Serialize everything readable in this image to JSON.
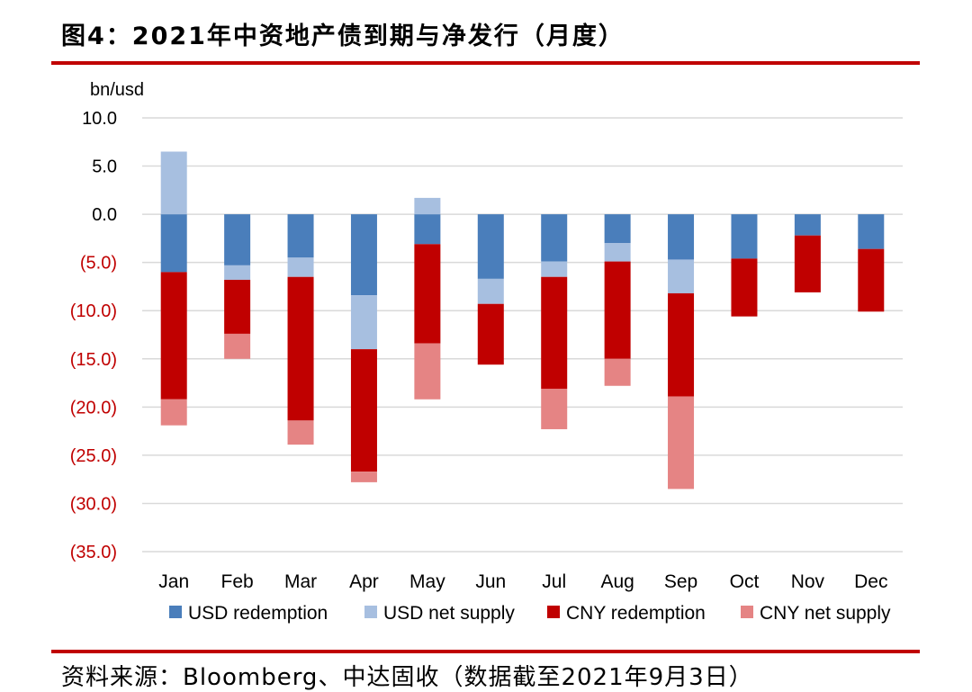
{
  "header": {
    "title": "图4：2021年中资地产债到期与净发行（月度）"
  },
  "footer": {
    "source": "资料来源：Bloomberg、中达固收（数据截至2021年9月3日）"
  },
  "colors": {
    "accent_rule": "#c00000",
    "usd_redemption": "#4a7ebb",
    "usd_net_supply": "#a7bfe0",
    "cny_redemption": "#c00000",
    "cny_net_supply": "#e58484",
    "grid": "#d9d9d9",
    "negative_tick": "#c00000"
  },
  "chart_data": {
    "type": "bar",
    "stacked": true,
    "unit_label": "bn/usd",
    "categories": [
      "Jan",
      "Feb",
      "Mar",
      "Apr",
      "May",
      "Jun",
      "Jul",
      "Aug",
      "Sep",
      "Oct",
      "Nov",
      "Dec"
    ],
    "ylim": [
      -35,
      10
    ],
    "yticks": [
      10,
      5,
      0,
      -5,
      -10,
      -15,
      -20,
      -25,
      -30,
      -35
    ],
    "ytick_labels": [
      "10.0",
      "5.0",
      "0.0",
      "(5.0)",
      "(10.0)",
      "(15.0)",
      "(20.0)",
      "(25.0)",
      "(30.0)",
      "(35.0)"
    ],
    "grid": true,
    "legend_position": "bottom",
    "series": [
      {
        "name": "USD redemption",
        "values": [
          -6.0,
          -5.3,
          -4.5,
          -8.4,
          -3.1,
          -6.7,
          -4.9,
          -3.0,
          -4.7,
          -4.6,
          -2.2,
          -3.6
        ]
      },
      {
        "name": "USD net supply",
        "values": [
          6.5,
          -1.5,
          -2.0,
          -5.6,
          1.7,
          -2.6,
          -1.6,
          -1.9,
          -3.5,
          0,
          0,
          0
        ]
      },
      {
        "name": "CNY redemption",
        "values": [
          -13.2,
          -5.6,
          -14.9,
          -12.7,
          -10.3,
          -6.3,
          -11.6,
          -10.1,
          -10.7,
          -6.0,
          -5.9,
          -6.5
        ]
      },
      {
        "name": "CNY net supply",
        "values": [
          -2.7,
          -2.6,
          -2.5,
          -1.1,
          -5.8,
          0,
          -4.2,
          -2.8,
          -9.6,
          0,
          0,
          0
        ]
      }
    ]
  }
}
